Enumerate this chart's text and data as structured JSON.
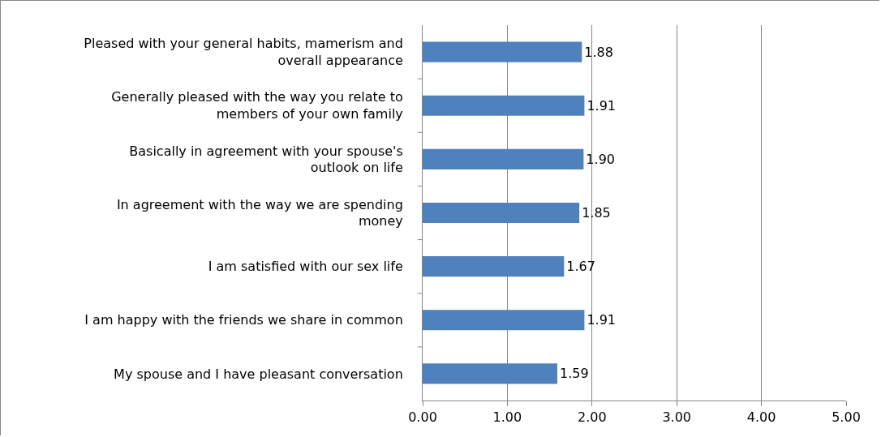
{
  "chart_data": {
    "type": "bar",
    "orientation": "horizontal",
    "categories": [
      "Pleased with your general habits, mamerism and overall appearance",
      "Generally pleased with the way you relate to members of your own family",
      "Basically in agreement with your spouse's outlook on life",
      "In agreement with the way we are spending money",
      "I am satisfied with our sex life",
      "I am happy with the friends we share in common",
      "My spouse and I have pleasant conversation"
    ],
    "values": [
      1.88,
      1.91,
      1.9,
      1.85,
      1.67,
      1.91,
      1.59
    ],
    "value_labels": [
      "1.88",
      "1.91",
      "1.90",
      "1.85",
      "1.67",
      "1.91",
      "1.59"
    ],
    "color": "#4f81bd",
    "xlim": [
      0,
      5
    ],
    "xticks": [
      {
        "value": 0,
        "label": "0.00"
      },
      {
        "value": 1,
        "label": "1.00"
      },
      {
        "value": 2,
        "label": "2.00"
      },
      {
        "value": 3,
        "label": "3.00"
      },
      {
        "value": 4,
        "label": "4.00"
      },
      {
        "value": 5,
        "label": "5.00"
      }
    ],
    "grid": "x"
  }
}
